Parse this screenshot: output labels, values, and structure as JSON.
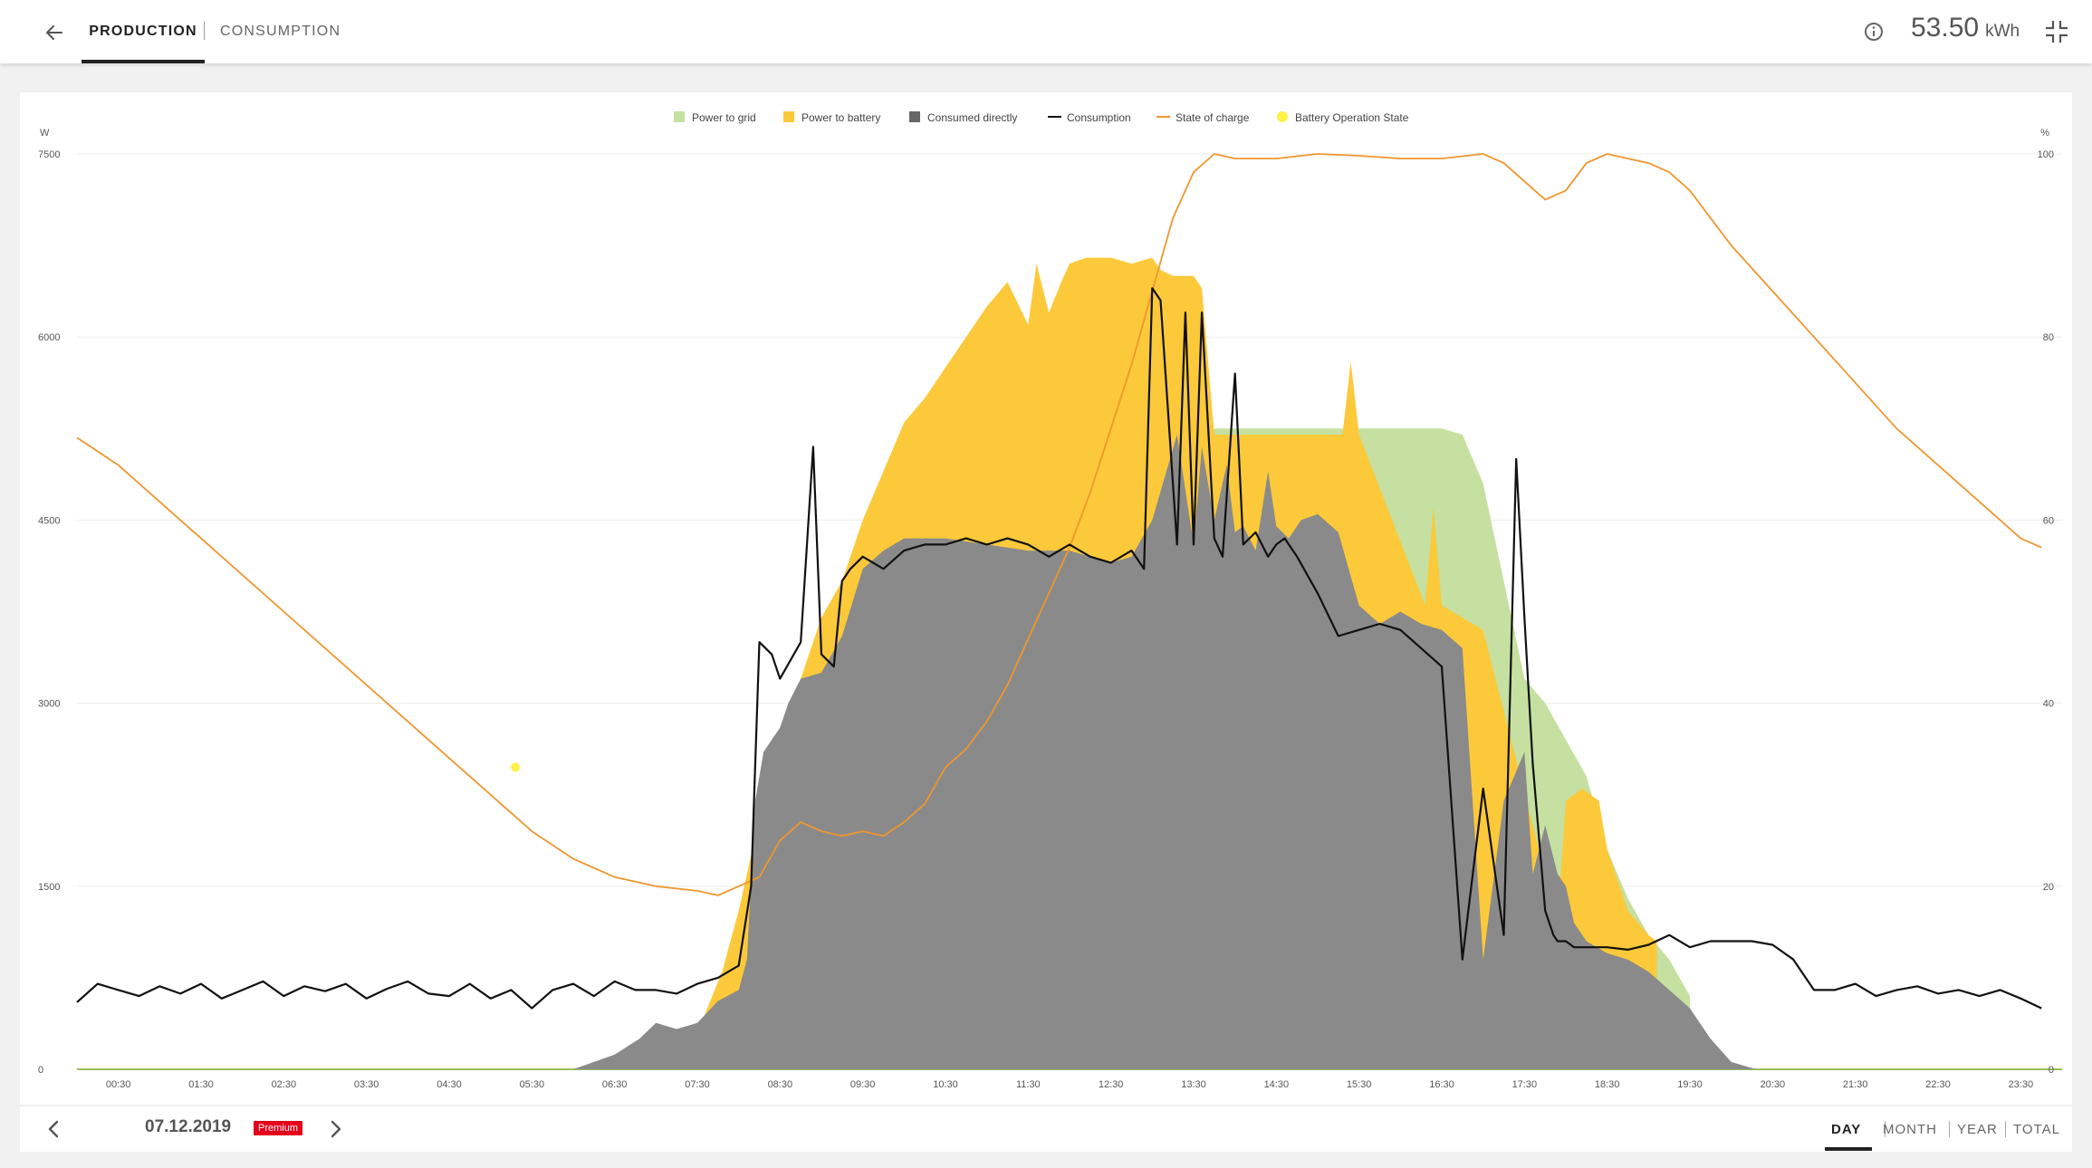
{
  "header": {
    "tabs": [
      {
        "label": "PRODUCTION",
        "active": true
      },
      {
        "label": "CONSUMPTION",
        "active": false
      }
    ],
    "total_value": "53.50",
    "total_unit": "kWh",
    "icons": [
      "back-arrow-icon",
      "info-icon",
      "collapse-icon"
    ]
  },
  "footer": {
    "date": "07.12.2019",
    "badge": "Premium",
    "periods": [
      "DAY",
      "MONTH",
      "YEAR",
      "TOTAL"
    ],
    "active_period": "DAY",
    "icons": [
      "chevron-left-icon",
      "chevron-right-icon"
    ]
  },
  "colors": {
    "grid": "#c5e0a0",
    "battery": "#fcc93a",
    "consumed": "#8a8a8a",
    "consumption": "#111111",
    "soc": "#f0962e",
    "battery_state": "#fff04a",
    "accent": "#e2001a"
  },
  "chart_data": {
    "type": "area",
    "legend": [
      {
        "name": "Power to grid",
        "style": "square",
        "color": "#c5e0a0"
      },
      {
        "name": "Power to battery",
        "style": "square",
        "color": "#fcc93a"
      },
      {
        "name": "Consumed directly",
        "style": "square",
        "color": "#666666"
      },
      {
        "name": "Consumption",
        "style": "line",
        "color": "#111111"
      },
      {
        "name": "State of charge",
        "style": "line",
        "color": "#f0962e"
      },
      {
        "name": "Battery Operation State",
        "style": "dot",
        "color": "#fff04a"
      }
    ],
    "legend_position": "top-center",
    "grid": true,
    "y_left": {
      "unit": "W",
      "min": 0,
      "max": 7500,
      "ticks": [
        "0",
        "1500",
        "3000",
        "4500",
        "6000",
        "7500"
      ]
    },
    "y_right": {
      "unit": "%",
      "min": 0,
      "max": 100,
      "ticks": [
        "0",
        "20",
        "40",
        "60",
        "80",
        "100"
      ]
    },
    "x_ticks": [
      "00:30",
      "01:30",
      "02:30",
      "03:30",
      "04:30",
      "05:30",
      "06:30",
      "07:30",
      "08:30",
      "09:30",
      "10:30",
      "11:30",
      "12:30",
      "13:30",
      "14:30",
      "15:30",
      "16:30",
      "17:30",
      "18:30",
      "19:30",
      "20:30",
      "21:30",
      "22:30",
      "23:30"
    ],
    "x_unit": "hours",
    "x_range": [
      0,
      24
    ],
    "series": [
      {
        "name": "Consumed directly",
        "x": [
          6.0,
          6.5,
          6.8,
          7.0,
          7.25,
          7.5,
          7.6,
          7.75,
          8.0,
          8.1,
          8.2,
          8.3,
          8.4,
          8.5,
          8.6,
          8.75,
          9.0,
          9.25,
          9.5,
          9.75,
          10.0,
          10.5,
          11.0,
          11.5,
          12.0,
          12.5,
          12.75,
          13.0,
          13.3,
          13.5,
          13.6,
          13.75,
          13.9,
          14.0,
          14.1,
          14.25,
          14.4,
          14.5,
          14.65,
          14.8,
          15.0,
          15.25,
          15.5,
          15.75,
          16.0,
          16.25,
          16.5,
          16.75,
          17.0,
          17.25,
          17.5,
          17.6,
          17.75,
          17.9,
          18.0,
          18.1,
          18.25,
          18.5,
          18.75,
          19.0,
          19.25,
          19.5,
          19.75,
          20.0,
          20.3
        ],
        "y": [
          0,
          120,
          250,
          380,
          330,
          380,
          450,
          560,
          650,
          900,
          2200,
          2600,
          2700,
          2800,
          3000,
          3200,
          3250,
          3550,
          4100,
          4250,
          4350,
          4350,
          4300,
          4250,
          4250,
          4150,
          4200,
          4500,
          5200,
          4300,
          5100,
          4500,
          4950,
          4400,
          4450,
          4250,
          4900,
          4450,
          4350,
          4500,
          4550,
          4400,
          3800,
          3650,
          3750,
          3650,
          3600,
          3450,
          900,
          2200,
          2600,
          1600,
          2000,
          1600,
          1500,
          1200,
          1050,
          950,
          900,
          800,
          650,
          500,
          250,
          60,
          0
        ]
      },
      {
        "name": "Power to battery",
        "x": [
          6.5,
          7.5,
          7.8,
          8.0,
          8.2,
          8.5,
          8.75,
          9.0,
          9.25,
          9.5,
          9.75,
          10.0,
          10.25,
          10.5,
          10.75,
          11.0,
          11.25,
          11.5,
          11.6,
          11.75,
          11.9,
          12.0,
          12.2,
          12.5,
          12.75,
          13.0,
          13.1,
          13.25,
          13.5,
          13.6,
          13.75,
          15.3,
          15.4,
          15.5,
          16.3,
          16.4,
          16.5,
          17.0,
          17.9,
          18.0,
          18.2,
          18.4,
          18.5,
          18.75,
          19.0,
          19.1
        ],
        "y": [
          0,
          300,
          800,
          1300,
          1900,
          2500,
          3200,
          3700,
          4000,
          4500,
          4900,
          5300,
          5500,
          5750,
          6000,
          6250,
          6450,
          6100,
          6600,
          6200,
          6450,
          6600,
          6650,
          6650,
          6600,
          6650,
          6550,
          6500,
          6500,
          6400,
          5200,
          5200,
          5800,
          5200,
          3800,
          4600,
          3800,
          3600,
          1200,
          2200,
          2300,
          2200,
          1800,
          1300,
          1100,
          1050
        ]
      },
      {
        "name": "Power to grid",
        "x": [
          13.5,
          13.7,
          14.0,
          15.0,
          15.5,
          16.0,
          16.5,
          16.75,
          17.0,
          17.25,
          17.5,
          17.75,
          18.0,
          18.25,
          18.5,
          18.75,
          19.0,
          19.25,
          19.5
        ],
        "y": [
          5200,
          5250,
          5250,
          5250,
          5250,
          5250,
          5250,
          5200,
          4800,
          4000,
          3200,
          3000,
          2700,
          2400,
          1800,
          1400,
          1100,
          900,
          600
        ]
      },
      {
        "name": "Consumption",
        "x": [
          0.0,
          0.25,
          0.5,
          0.75,
          1.0,
          1.25,
          1.5,
          1.75,
          2.0,
          2.25,
          2.5,
          2.75,
          3.0,
          3.25,
          3.5,
          3.75,
          4.0,
          4.25,
          4.5,
          4.75,
          5.0,
          5.25,
          5.5,
          5.75,
          6.0,
          6.25,
          6.5,
          6.75,
          7.0,
          7.25,
          7.5,
          7.75,
          8.0,
          8.15,
          8.25,
          8.4,
          8.5,
          8.75,
          8.9,
          9.0,
          9.15,
          9.25,
          9.35,
          9.5,
          9.75,
          10.0,
          10.25,
          10.5,
          10.75,
          11.0,
          11.25,
          11.5,
          11.75,
          12.0,
          12.25,
          12.5,
          12.75,
          12.9,
          13.0,
          13.1,
          13.3,
          13.4,
          13.5,
          13.6,
          13.75,
          13.85,
          14.0,
          14.1,
          14.25,
          14.4,
          14.5,
          14.6,
          14.75,
          15.0,
          15.25,
          15.5,
          15.75,
          16.0,
          16.25,
          16.5,
          16.75,
          17.0,
          17.25,
          17.4,
          17.5,
          17.6,
          17.75,
          17.85,
          17.9,
          18.0,
          18.1,
          18.25,
          18.5,
          18.75,
          19.0,
          19.25,
          19.5,
          19.75,
          20.0,
          20.25,
          20.5,
          20.75,
          21.0,
          21.25,
          21.5,
          21.75,
          22.0,
          22.25,
          22.5,
          22.75,
          23.0,
          23.25,
          23.5,
          23.75
        ],
        "y": [
          550,
          700,
          650,
          600,
          680,
          620,
          700,
          580,
          650,
          720,
          600,
          680,
          640,
          700,
          580,
          660,
          720,
          620,
          600,
          700,
          580,
          650,
          500,
          650,
          700,
          600,
          720,
          650,
          650,
          620,
          700,
          750,
          850,
          1500,
          3500,
          3400,
          3200,
          3500,
          5100,
          3400,
          3300,
          4000,
          4100,
          4200,
          4100,
          4250,
          4300,
          4300,
          4350,
          4300,
          4350,
          4300,
          4200,
          4300,
          4200,
          4150,
          4250,
          4100,
          6400,
          6300,
          4300,
          6200,
          4300,
          6200,
          4350,
          4200,
          5700,
          4300,
          4400,
          4200,
          4300,
          4350,
          4200,
          3900,
          3550,
          3600,
          3650,
          3600,
          3450,
          3300,
          900,
          2300,
          1100,
          5000,
          3700,
          2500,
          1300,
          1100,
          1050,
          1050,
          1000,
          1000,
          1000,
          980,
          1020,
          1100,
          1000,
          1050,
          1050,
          1050,
          1020,
          900,
          650,
          650,
          700,
          600,
          650,
          680,
          620,
          650,
          600,
          650,
          580,
          500
        ]
      },
      {
        "name": "State of charge",
        "axis": "right",
        "x": [
          0.0,
          0.5,
          1.0,
          1.5,
          2.0,
          2.5,
          3.0,
          3.5,
          4.0,
          4.5,
          5.0,
          5.5,
          6.0,
          6.5,
          7.0,
          7.5,
          7.75,
          8.0,
          8.25,
          8.5,
          8.75,
          9.0,
          9.25,
          9.5,
          9.75,
          10.0,
          10.25,
          10.5,
          10.75,
          11.0,
          11.25,
          11.5,
          11.75,
          12.0,
          12.25,
          12.5,
          12.75,
          13.0,
          13.25,
          13.5,
          13.75,
          14.0,
          14.5,
          15.0,
          15.5,
          16.0,
          16.5,
          17.0,
          17.25,
          17.5,
          17.75,
          18.0,
          18.25,
          18.5,
          18.75,
          19.0,
          19.25,
          19.5,
          19.75,
          20.0,
          20.5,
          21.0,
          21.5,
          22.0,
          22.5,
          23.0,
          23.5,
          23.75
        ],
        "y": [
          69,
          66,
          62,
          58,
          54,
          50,
          46,
          42,
          38,
          34,
          30,
          26,
          23,
          21,
          20,
          19.5,
          19,
          20,
          21,
          25,
          27,
          26,
          25.5,
          26,
          25.5,
          27,
          29,
          33,
          35,
          38,
          42,
          47,
          52,
          57,
          63,
          70,
          77,
          85,
          93,
          98,
          100,
          99.5,
          99.5,
          100,
          99.8,
          99.5,
          99.5,
          100,
          99,
          97,
          95,
          96,
          99,
          100,
          99.5,
          99,
          98,
          96,
          93,
          90,
          85,
          80,
          75,
          70,
          66,
          62,
          58,
          57
        ]
      }
    ],
    "battery_operation_state": {
      "x": [
        5.3
      ],
      "y_percent": [
        33
      ]
    }
  }
}
